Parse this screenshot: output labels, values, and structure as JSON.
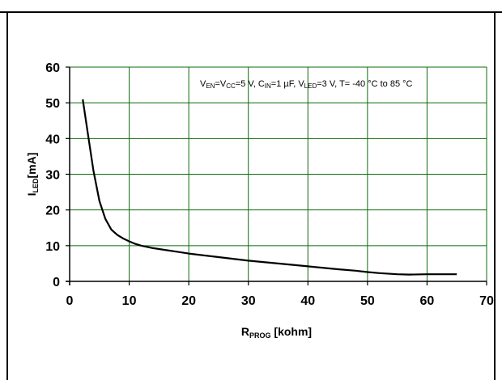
{
  "chart_data": {
    "type": "line",
    "xlabel": {
      "main": "R",
      "sub": "PROG",
      "rest": " [kohm]"
    },
    "ylabel": {
      "main": "I",
      "sub": "LED",
      "rest": "[mA]"
    },
    "xlim": [
      0,
      70
    ],
    "ylim": [
      0,
      60
    ],
    "xticks": [
      0,
      10,
      20,
      30,
      40,
      50,
      60,
      70
    ],
    "yticks": [
      0,
      10,
      20,
      30,
      40,
      50,
      60
    ],
    "grid": true,
    "annotation": [
      {
        "text": "V"
      },
      {
        "text": "EN",
        "sub": true
      },
      {
        "text": "=V"
      },
      {
        "text": "CC",
        "sub": true
      },
      {
        "text": "=5 V,  C"
      },
      {
        "text": "IN",
        "sub": true
      },
      {
        "text": "=1 µF, V"
      },
      {
        "text": "LED",
        "sub": true
      },
      {
        "text": "=3 V, T= -40 °C to 85 °C"
      }
    ],
    "series": [
      {
        "x": [
          2.2,
          3.0,
          4.0,
          5.0,
          6.0,
          7.0,
          8.0,
          9.0,
          10.0,
          11.0,
          12.0,
          14.0,
          16.0,
          18.0,
          20.0,
          25.0,
          30.0,
          35.0,
          40.0,
          45.0,
          48.0,
          50.0,
          52.0,
          55.0,
          57.0,
          60.0,
          65.0
        ],
        "y": [
          51,
          42,
          31,
          22.5,
          17.5,
          14.5,
          13,
          12,
          11.2,
          10.5,
          10,
          9.3,
          8.8,
          8.3,
          7.8,
          6.8,
          5.8,
          5.0,
          4.2,
          3.4,
          3.0,
          2.6,
          2.3,
          2.0,
          1.9,
          2.0,
          2.0
        ],
        "color": "#000000"
      }
    ]
  }
}
